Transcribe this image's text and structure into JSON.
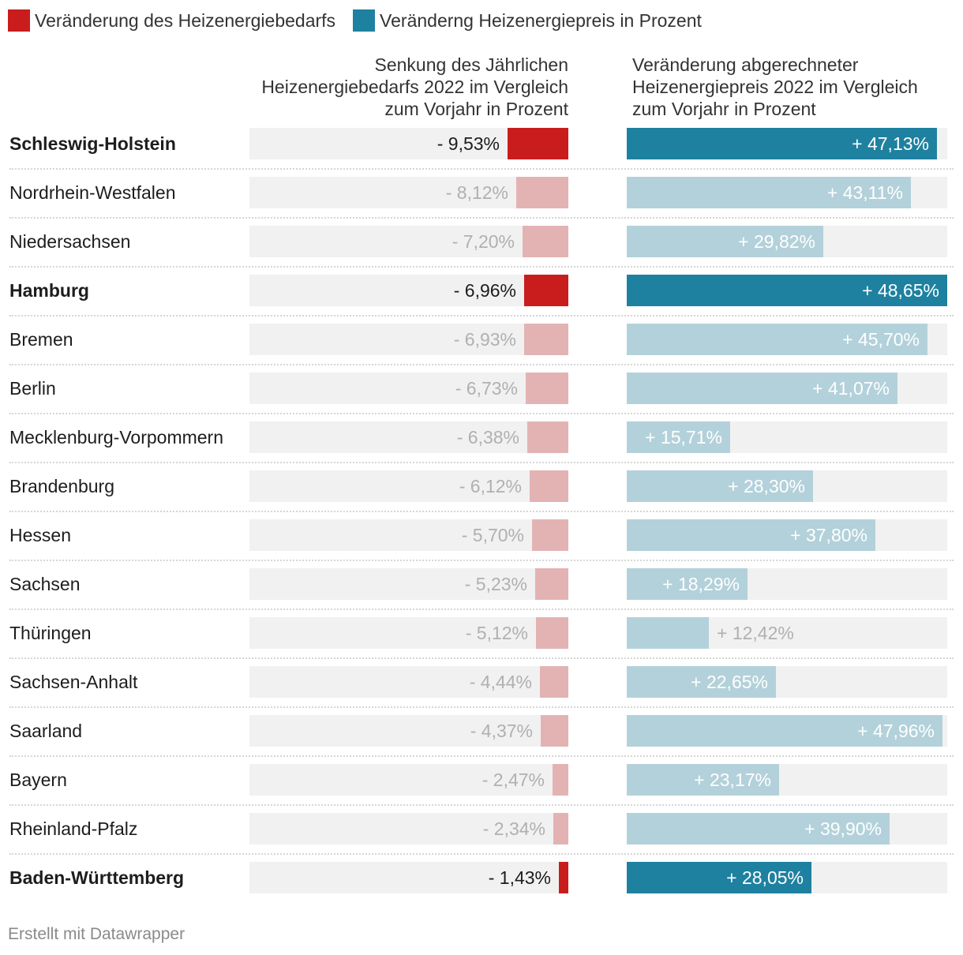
{
  "legend": [
    {
      "label": "Veränderung des Heizenergiebedarfs",
      "color": "#c91d1d"
    },
    {
      "label": "Veränderng Heizenergiepreis in Prozent",
      "color": "#1e81a0"
    }
  ],
  "headers": {
    "left": "Senkung des Jährlichen Heizenergiebedarfs 2022 im Vergleich zum Vorjahr in Prozent",
    "right": "Veränderung abgerechneter Heizenergiepreis 2022 im Vergleich zum Vorjahr in Prozent"
  },
  "footer": "Erstellt mit Datawrapper",
  "colors": {
    "red_strong": "#c91d1d",
    "red_light": "#e3b3b3",
    "blue_strong": "#1e81a0",
    "blue_light": "#b3d1da",
    "track": "#f1f1f1"
  },
  "chart_data": {
    "type": "bar",
    "title": "",
    "categories": [
      "Schleswig-Holstein",
      "Nordrhein-Westfalen",
      "Niedersachsen",
      "Hamburg",
      "Bremen",
      "Berlin",
      "Mecklenburg-Vorpommern",
      "Brandenburg",
      "Hessen",
      "Sachsen",
      "Thüringen",
      "Sachsen-Anhalt",
      "Saarland",
      "Bayern",
      "Rheinland-Pfalz",
      "Baden-Württemberg"
    ],
    "highlighted": [
      true,
      false,
      false,
      true,
      false,
      false,
      false,
      false,
      false,
      false,
      false,
      false,
      false,
      false,
      false,
      true
    ],
    "series": [
      {
        "name": "Veränderung des Heizenergiebedarfs",
        "values": [
          -9.53,
          -8.12,
          -7.2,
          -6.96,
          -6.93,
          -6.73,
          -6.38,
          -6.12,
          -5.7,
          -5.23,
          -5.12,
          -4.44,
          -4.37,
          -2.47,
          -2.34,
          -1.43
        ],
        "labels": [
          "- 9,53%",
          "- 8,12%",
          "- 7,20%",
          "- 6,96%",
          "- 6,93%",
          "- 6,73%",
          "- 6,38%",
          "- 6,12%",
          "- 5,70%",
          "- 5,23%",
          "- 5,12%",
          "- 4,44%",
          "- 4,37%",
          "- 2,47%",
          "- 2,34%",
          "- 1,43%"
        ],
        "range": [
          0,
          50
        ]
      },
      {
        "name": "Veränderng Heizenergiepreis in Prozent",
        "values": [
          47.13,
          43.11,
          29.82,
          48.65,
          45.7,
          41.07,
          15.71,
          28.3,
          37.8,
          18.29,
          12.42,
          22.65,
          47.96,
          23.17,
          39.9,
          28.05
        ],
        "labels": [
          "+ 47,13%",
          "+ 43,11%",
          "+ 29,82%",
          "+ 48,65%",
          "+ 45,70%",
          "+ 41,07%",
          "+ 15,71%",
          "+ 28,30%",
          "+ 37,80%",
          "+ 18,29%",
          "+ 12,42%",
          "+ 22,65%",
          "+ 47,96%",
          "+ 23,17%",
          "+ 39,90%",
          "+ 28,05%"
        ],
        "range": [
          0,
          48.65
        ]
      }
    ]
  }
}
